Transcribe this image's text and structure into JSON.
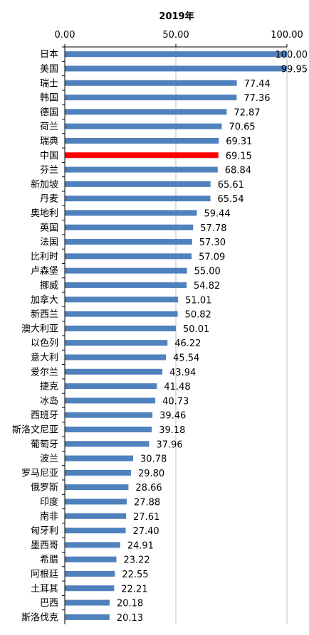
{
  "chart_data": {
    "type": "bar",
    "orientation": "horizontal",
    "title": "2019年",
    "xlabel": "",
    "ylabel": "",
    "xlim": [
      0,
      100
    ],
    "ticks": [
      "0.00",
      "50.00",
      "100.00"
    ],
    "axis_position": "top",
    "grid": true,
    "legend": "none",
    "bar_color": "#4F81BD",
    "highlight_color": "#FF0000",
    "highlight_category": "中国",
    "categories": [
      "日本",
      "美国",
      "瑞士",
      "韩国",
      "德国",
      "荷兰",
      "瑞典",
      "中国",
      "芬兰",
      "新加坡",
      "丹麦",
      "奥地利",
      "英国",
      "法国",
      "比利时",
      "卢森堡",
      "挪威",
      "加拿大",
      "新西兰",
      "澳大利亚",
      "以色列",
      "意大利",
      "爱尔兰",
      "捷克",
      "冰岛",
      "西班牙",
      "斯洛文尼亚",
      "葡萄牙",
      "波兰",
      "罗马尼亚",
      "俄罗斯",
      "印度",
      "南非",
      "匈牙利",
      "墨西哥",
      "希腊",
      "阿根廷",
      "土耳其",
      "巴西",
      "斯洛伐克"
    ],
    "values": [
      100.0,
      99.95,
      77.44,
      77.36,
      72.87,
      70.65,
      69.31,
      69.15,
      68.84,
      65.61,
      65.54,
      59.44,
      57.78,
      57.3,
      57.09,
      55.0,
      54.82,
      51.01,
      50.82,
      50.01,
      46.22,
      45.54,
      43.94,
      41.48,
      40.73,
      39.46,
      39.18,
      37.96,
      30.78,
      29.8,
      28.66,
      27.88,
      27.61,
      27.4,
      24.91,
      23.22,
      22.55,
      22.21,
      20.18,
      20.13
    ],
    "value_labels": [
      "100.00",
      "99.95",
      "77.44",
      "77.36",
      "72.87",
      "70.65",
      "69.31",
      "69.15",
      "68.84",
      "65.61",
      "65.54",
      "59.44",
      "57.78",
      "57.30",
      "57.09",
      "55.00",
      "54.82",
      "51.01",
      "50.82",
      "50.01",
      "46.22",
      "45.54",
      "43.94",
      "41.48",
      "40.73",
      "39.46",
      "39.18",
      "37.96",
      "30.78",
      "29.80",
      "28.66",
      "27.88",
      "27.61",
      "27.40",
      "24.91",
      "23.22",
      "22.55",
      "22.21",
      "20.18",
      "20.13"
    ]
  }
}
